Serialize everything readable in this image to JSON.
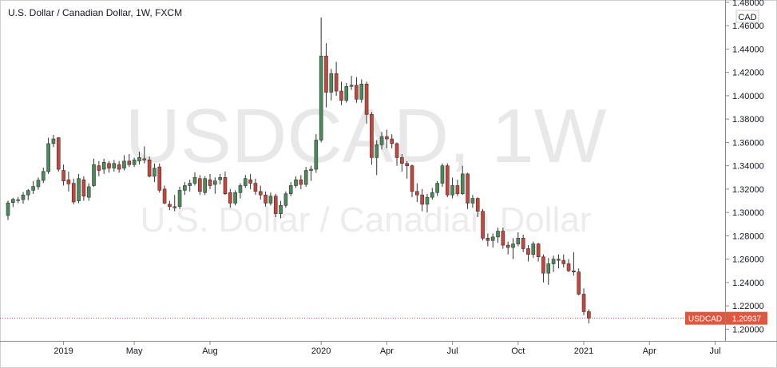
{
  "header": {
    "title": "U.S. Dollar / Canadian Dollar, 1W, FXCM"
  },
  "watermark": {
    "symbol": "USDCAD, 1W",
    "name": "U.S. Dollar / Canadian Dollar"
  },
  "axis": {
    "currency": "CAD",
    "last_symbol": "USDCAD",
    "last_price_text": "1.20937"
  },
  "colors": {
    "up": "#4a8c59",
    "down": "#c9453a",
    "label_bg": "#e0573e"
  },
  "chart_data": {
    "type": "candlestick",
    "title": "U.S. Dollar / Canadian Dollar, 1W, FXCM",
    "xlabel": "",
    "ylabel": "",
    "ylim": [
      1.19,
      1.482
    ],
    "y_ticks": [
      "1.48000",
      "1.46000",
      "1.44000",
      "1.42000",
      "1.40000",
      "1.38000",
      "1.36000",
      "1.34000",
      "1.32000",
      "1.30000",
      "1.28000",
      "1.26000",
      "1.24000",
      "1.22000",
      "1.20000"
    ],
    "x_ticks": [
      "2019",
      "May",
      "Aug",
      "2020",
      "Apr",
      "Jul",
      "Oct",
      "2021",
      "Apr",
      "Jul"
    ],
    "last_price": 1.20937,
    "grid": false,
    "legend": "none",
    "ohlc": [
      [
        1.2974,
        1.3101,
        1.2935,
        1.3082
      ],
      [
        1.3085,
        1.3126,
        1.3046,
        1.3113
      ],
      [
        1.3108,
        1.3133,
        1.3079,
        1.3109
      ],
      [
        1.311,
        1.3175,
        1.3075,
        1.315
      ],
      [
        1.315,
        1.32,
        1.3105,
        1.3188
      ],
      [
        1.319,
        1.327,
        1.3158,
        1.3222
      ],
      [
        1.3221,
        1.33,
        1.3195,
        1.3276
      ],
      [
        1.3275,
        1.3384,
        1.3252,
        1.3351
      ],
      [
        1.335,
        1.364,
        1.333,
        1.359
      ],
      [
        1.359,
        1.3665,
        1.356,
        1.363
      ],
      [
        1.364,
        1.3645,
        1.335,
        1.337
      ],
      [
        1.336,
        1.341,
        1.323,
        1.327
      ],
      [
        1.328,
        1.335,
        1.318,
        1.3245
      ],
      [
        1.325,
        1.329,
        1.307,
        1.309
      ],
      [
        1.31,
        1.333,
        1.308,
        1.329
      ],
      [
        1.328,
        1.331,
        1.31,
        1.314
      ],
      [
        1.313,
        1.325,
        1.31,
        1.322
      ],
      [
        1.323,
        1.346,
        1.322,
        1.341
      ],
      [
        1.34,
        1.344,
        1.331,
        1.336
      ],
      [
        1.337,
        1.346,
        1.333,
        1.343
      ],
      [
        1.342,
        1.344,
        1.334,
        1.338
      ],
      [
        1.338,
        1.345,
        1.335,
        1.342
      ],
      [
        1.341,
        1.344,
        1.334,
        1.337
      ],
      [
        1.338,
        1.349,
        1.336,
        1.344
      ],
      [
        1.344,
        1.35,
        1.339,
        1.341
      ],
      [
        1.341,
        1.347,
        1.339,
        1.345
      ],
      [
        1.344,
        1.352,
        1.341,
        1.347
      ],
      [
        1.346,
        1.3566,
        1.342,
        1.345
      ],
      [
        1.345,
        1.348,
        1.33,
        1.331
      ],
      [
        1.331,
        1.342,
        1.326,
        1.338
      ],
      [
        1.339,
        1.342,
        1.317,
        1.319
      ],
      [
        1.32,
        1.323,
        1.307,
        1.308
      ],
      [
        1.307,
        1.31,
        1.302,
        1.305
      ],
      [
        1.305,
        1.315,
        1.301,
        1.304
      ],
      [
        1.305,
        1.322,
        1.303,
        1.319
      ],
      [
        1.319,
        1.326,
        1.315,
        1.323
      ],
      [
        1.323,
        1.328,
        1.318,
        1.325
      ],
      [
        1.325,
        1.3345,
        1.323,
        1.33
      ],
      [
        1.329,
        1.332,
        1.315,
        1.318
      ],
      [
        1.317,
        1.331,
        1.315,
        1.329
      ],
      [
        1.328,
        1.333,
        1.32,
        1.323
      ],
      [
        1.324,
        1.33,
        1.316,
        1.327
      ],
      [
        1.328,
        1.333,
        1.324,
        1.33
      ],
      [
        1.33,
        1.335,
        1.315,
        1.316
      ],
      [
        1.317,
        1.32,
        1.304,
        1.308
      ],
      [
        1.308,
        1.319,
        1.306,
        1.317
      ],
      [
        1.317,
        1.325,
        1.312,
        1.323
      ],
      [
        1.323,
        1.332,
        1.321,
        1.329
      ],
      [
        1.328,
        1.333,
        1.32,
        1.325
      ],
      [
        1.325,
        1.329,
        1.315,
        1.318
      ],
      [
        1.318,
        1.323,
        1.311,
        1.315
      ],
      [
        1.315,
        1.318,
        1.305,
        1.308
      ],
      [
        1.308,
        1.317,
        1.306,
        1.314
      ],
      [
        1.314,
        1.316,
        1.296,
        1.299
      ],
      [
        1.299,
        1.31,
        1.295,
        1.306
      ],
      [
        1.306,
        1.318,
        1.304,
        1.316
      ],
      [
        1.316,
        1.326,
        1.314,
        1.323
      ],
      [
        1.323,
        1.331,
        1.321,
        1.328
      ],
      [
        1.328,
        1.332,
        1.32,
        1.324
      ],
      [
        1.324,
        1.339,
        1.322,
        1.336
      ],
      [
        1.336,
        1.34,
        1.327,
        1.337
      ],
      [
        1.337,
        1.367,
        1.334,
        1.362
      ],
      [
        1.362,
        1.467,
        1.36,
        1.434
      ],
      [
        1.434,
        1.445,
        1.39,
        1.403
      ],
      [
        1.403,
        1.423,
        1.396,
        1.419
      ],
      [
        1.419,
        1.429,
        1.4,
        1.404
      ],
      [
        1.404,
        1.412,
        1.392,
        1.396
      ],
      [
        1.396,
        1.411,
        1.394,
        1.408
      ],
      [
        1.408,
        1.417,
        1.405,
        1.409
      ],
      [
        1.409,
        1.416,
        1.394,
        1.397
      ],
      [
        1.397,
        1.414,
        1.394,
        1.41
      ],
      [
        1.41,
        1.412,
        1.376,
        1.384
      ],
      [
        1.384,
        1.386,
        1.341,
        1.347
      ],
      [
        1.347,
        1.362,
        1.332,
        1.358
      ],
      [
        1.358,
        1.369,
        1.354,
        1.365
      ],
      [
        1.365,
        1.371,
        1.355,
        1.363
      ],
      [
        1.363,
        1.367,
        1.355,
        1.359
      ],
      [
        1.359,
        1.36,
        1.34,
        1.347
      ],
      [
        1.347,
        1.35,
        1.335,
        1.342
      ],
      [
        1.342,
        1.344,
        1.329,
        1.34
      ],
      [
        1.34,
        1.341,
        1.313,
        1.318
      ],
      [
        1.318,
        1.325,
        1.309,
        1.315
      ],
      [
        1.315,
        1.32,
        1.301,
        1.307
      ],
      [
        1.307,
        1.316,
        1.3,
        1.313
      ],
      [
        1.313,
        1.321,
        1.311,
        1.317
      ],
      [
        1.317,
        1.327,
        1.314,
        1.325
      ],
      [
        1.325,
        1.342,
        1.322,
        1.34
      ],
      [
        1.34,
        1.342,
        1.313,
        1.315
      ],
      [
        1.315,
        1.33,
        1.312,
        1.323
      ],
      [
        1.323,
        1.328,
        1.314,
        1.316
      ],
      [
        1.316,
        1.34,
        1.315,
        1.333
      ],
      [
        1.333,
        1.334,
        1.303,
        1.308
      ],
      [
        1.308,
        1.315,
        1.304,
        1.312
      ],
      [
        1.312,
        1.313,
        1.296,
        1.301
      ],
      [
        1.301,
        1.303,
        1.276,
        1.278
      ],
      [
        1.278,
        1.282,
        1.271,
        1.276
      ],
      [
        1.276,
        1.282,
        1.27,
        1.279
      ],
      [
        1.279,
        1.287,
        1.274,
        1.284
      ],
      [
        1.284,
        1.287,
        1.269,
        1.272
      ],
      [
        1.272,
        1.275,
        1.264,
        1.27
      ],
      [
        1.27,
        1.278,
        1.26,
        1.273
      ],
      [
        1.273,
        1.283,
        1.271,
        1.278
      ],
      [
        1.278,
        1.281,
        1.266,
        1.269
      ],
      [
        1.269,
        1.272,
        1.258,
        1.264
      ],
      [
        1.264,
        1.275,
        1.261,
        1.273
      ],
      [
        1.273,
        1.274,
        1.258,
        1.262
      ],
      [
        1.262,
        1.264,
        1.24,
        1.248
      ],
      [
        1.248,
        1.261,
        1.238,
        1.256
      ],
      [
        1.256,
        1.263,
        1.249,
        1.26
      ],
      [
        1.26,
        1.264,
        1.252,
        1.259
      ],
      [
        1.259,
        1.264,
        1.253,
        1.256
      ],
      [
        1.256,
        1.26,
        1.249,
        1.25
      ],
      [
        1.25,
        1.266,
        1.246,
        1.249
      ],
      [
        1.249,
        1.252,
        1.229,
        1.23
      ],
      [
        1.23,
        1.235,
        1.212,
        1.215
      ],
      [
        1.215,
        1.217,
        1.205,
        1.2094
      ]
    ]
  }
}
